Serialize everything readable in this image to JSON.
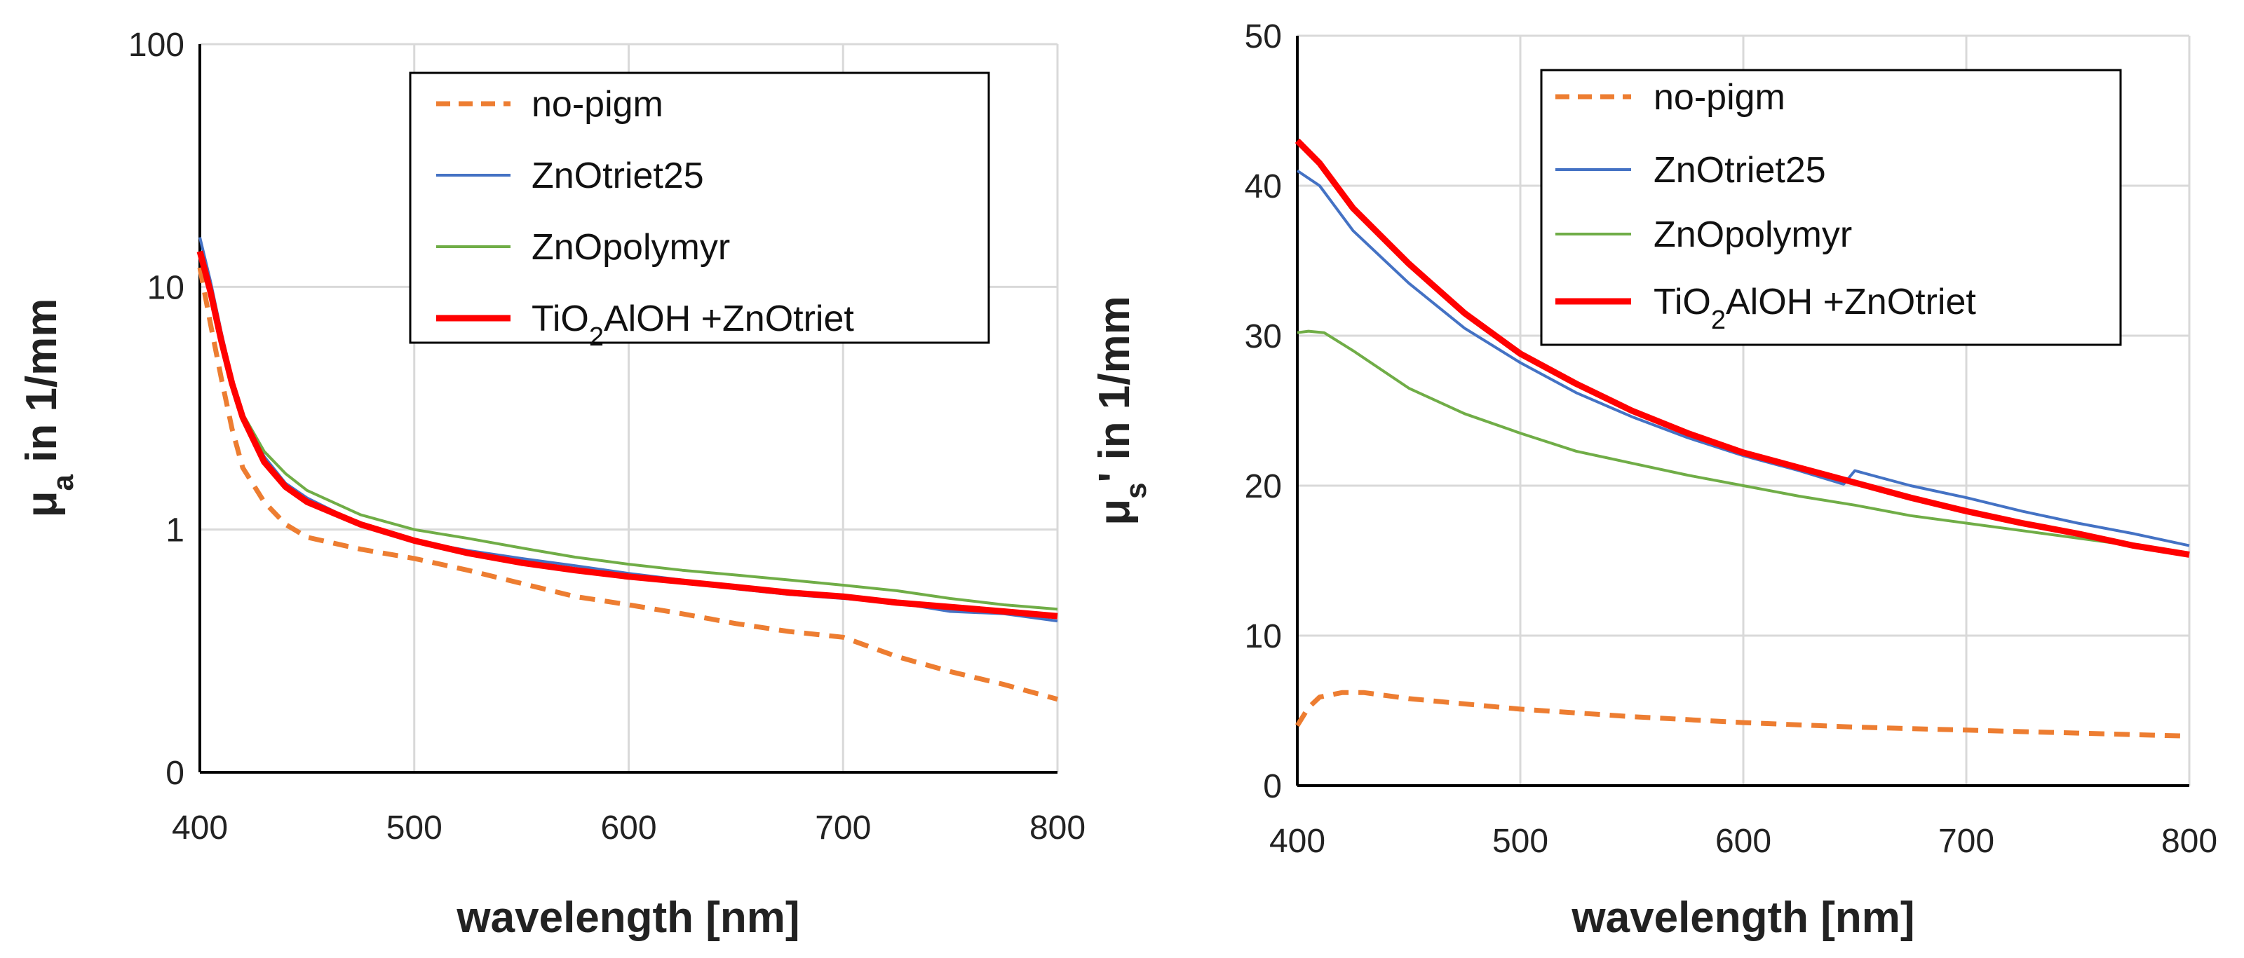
{
  "chart_data": [
    {
      "type": "line",
      "yscale": "log",
      "xlabel": "wavelength [nm]",
      "ylabel": "μ",
      "ylabel_sub": "a",
      "ylabel_suffix": " in 1/mm",
      "xlim": [
        400,
        800
      ],
      "ylim": [
        0.1,
        100
      ],
      "xticks": [
        400,
        500,
        600,
        700,
        800
      ],
      "yticks": [
        {
          "value": 0.1,
          "label": "0"
        },
        {
          "value": 1,
          "label": "1"
        },
        {
          "value": 10,
          "label": "10"
        },
        {
          "value": 100,
          "label": "100"
        }
      ],
      "legend": {
        "location": "top-right"
      },
      "series": [
        {
          "name": "no-pigm",
          "color": "#ED7D31",
          "style": "dashed",
          "x": [
            400,
            405,
            410,
            415,
            420,
            430,
            440,
            450,
            475,
            500,
            525,
            550,
            575,
            600,
            625,
            650,
            675,
            700,
            725,
            750,
            775,
            800
          ],
          "y": [
            12,
            7,
            4.2,
            2.6,
            1.8,
            1.3,
            1.05,
            0.93,
            0.83,
            0.76,
            0.68,
            0.6,
            0.53,
            0.49,
            0.45,
            0.41,
            0.38,
            0.36,
            0.3,
            0.26,
            0.23,
            0.2
          ]
        },
        {
          "name": "ZnOtriet25",
          "color": "#4472C4",
          "style": "solid",
          "x": [
            400,
            405,
            410,
            415,
            420,
            430,
            440,
            450,
            475,
            500,
            525,
            550,
            575,
            600,
            625,
            650,
            675,
            700,
            725,
            750,
            775,
            800
          ],
          "y": [
            16,
            10.5,
            6.5,
            4.2,
            3.0,
            2.0,
            1.55,
            1.35,
            1.05,
            0.9,
            0.82,
            0.76,
            0.71,
            0.66,
            0.62,
            0.57,
            0.54,
            0.52,
            0.5,
            0.46,
            0.45,
            0.42
          ]
        },
        {
          "name": "ZnOpolymyr",
          "color": "#70AD47",
          "style": "solid",
          "x": [
            400,
            405,
            410,
            415,
            420,
            430,
            440,
            450,
            475,
            500,
            525,
            550,
            575,
            600,
            625,
            650,
            675,
            700,
            725,
            750,
            775,
            800
          ],
          "y": [
            14,
            9.5,
            6.0,
            4.0,
            3.0,
            2.1,
            1.7,
            1.45,
            1.15,
            1.0,
            0.92,
            0.84,
            0.77,
            0.72,
            0.68,
            0.65,
            0.62,
            0.59,
            0.56,
            0.52,
            0.49,
            0.47
          ]
        },
        {
          "name": "TiO2AlOH +ZnOtriet",
          "label_main": "TiO",
          "label_sub": "2",
          "label_rest": "AlOH   +ZnOtriet",
          "color": "#FF0000",
          "style": "thick",
          "x": [
            400,
            405,
            410,
            415,
            420,
            430,
            440,
            450,
            475,
            500,
            525,
            550,
            575,
            600,
            625,
            650,
            675,
            700,
            725,
            750,
            775,
            800
          ],
          "y": [
            14,
            9.5,
            6.0,
            4.0,
            2.9,
            1.9,
            1.5,
            1.3,
            1.05,
            0.9,
            0.8,
            0.73,
            0.68,
            0.64,
            0.61,
            0.58,
            0.55,
            0.53,
            0.5,
            0.48,
            0.46,
            0.44
          ]
        }
      ]
    },
    {
      "type": "line",
      "yscale": "linear",
      "xlabel": "wavelength [nm]",
      "ylabel": "μ",
      "ylabel_sub": "s",
      "ylabel_suffix": "' in 1/mm",
      "xlim": [
        400,
        800
      ],
      "ylim": [
        0,
        50
      ],
      "xticks": [
        400,
        500,
        600,
        700,
        800
      ],
      "yticks": [
        {
          "value": 0,
          "label": "0"
        },
        {
          "value": 10,
          "label": "10"
        },
        {
          "value": 20,
          "label": "20"
        },
        {
          "value": 30,
          "label": "30"
        },
        {
          "value": 40,
          "label": "40"
        },
        {
          "value": 50,
          "label": "50"
        }
      ],
      "legend": {
        "location": "top-right"
      },
      "series": [
        {
          "name": "no-pigm",
          "color": "#ED7D31",
          "style": "dashed",
          "x": [
            400,
            405,
            410,
            420,
            430,
            450,
            500,
            550,
            600,
            650,
            700,
            750,
            800
          ],
          "y": [
            4.0,
            5.2,
            5.9,
            6.2,
            6.2,
            5.8,
            5.1,
            4.6,
            4.2,
            3.9,
            3.7,
            3.5,
            3.3
          ]
        },
        {
          "name": " ZnOtriet25",
          "color": "#4472C4",
          "style": "solid",
          "x": [
            400,
            410,
            425,
            450,
            475,
            500,
            525,
            550,
            575,
            600,
            625,
            645,
            650,
            675,
            700,
            725,
            750,
            775,
            800
          ],
          "y": [
            41,
            40,
            37,
            33.5,
            30.5,
            28.2,
            26.2,
            24.6,
            23.2,
            22.0,
            21.0,
            20.1,
            21.0,
            20.0,
            19.2,
            18.3,
            17.5,
            16.8,
            16.0
          ]
        },
        {
          "name": "ZnOpolymyr",
          "color": "#70AD47",
          "style": "solid",
          "x": [
            400,
            405,
            412,
            425,
            450,
            475,
            500,
            525,
            550,
            575,
            600,
            625,
            650,
            675,
            700,
            725,
            750,
            775,
            800
          ],
          "y": [
            30.2,
            30.3,
            30.2,
            29.0,
            26.5,
            24.8,
            23.5,
            22.3,
            21.5,
            20.7,
            20.0,
            19.3,
            18.7,
            18.0,
            17.5,
            17.0,
            16.5,
            16.0,
            15.5
          ]
        },
        {
          "name": "TiO2AlOH +ZnOtriet",
          "label_main": "TiO",
          "label_sub": "2",
          "label_rest": "AlOH   +ZnOtriet",
          "color": "#FF0000",
          "style": "thick",
          "x": [
            400,
            410,
            425,
            450,
            475,
            500,
            525,
            550,
            575,
            600,
            625,
            650,
            675,
            700,
            725,
            750,
            775,
            800
          ],
          "y": [
            43,
            41.5,
            38.5,
            34.8,
            31.5,
            28.8,
            26.8,
            25.0,
            23.5,
            22.2,
            21.2,
            20.2,
            19.2,
            18.3,
            17.5,
            16.8,
            16.0,
            15.4
          ]
        }
      ]
    }
  ]
}
